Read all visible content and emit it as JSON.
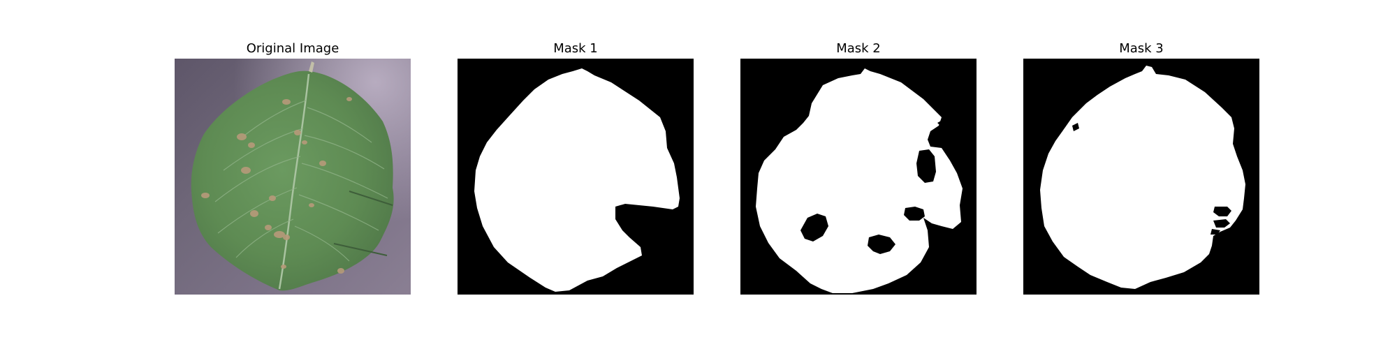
{
  "panels": [
    {
      "title": "Original Image",
      "content": "leaf-photo"
    },
    {
      "title": "Mask 1",
      "content": "binary-mask"
    },
    {
      "title": "Mask 2",
      "content": "binary-mask"
    },
    {
      "title": "Mask 3",
      "content": "binary-mask"
    }
  ],
  "colors": {
    "background": "#ffffff",
    "mask_background": "#000000",
    "mask_foreground": "#ffffff",
    "leaf_green": "#5f8a55",
    "surface_purple": "#6e6678"
  }
}
